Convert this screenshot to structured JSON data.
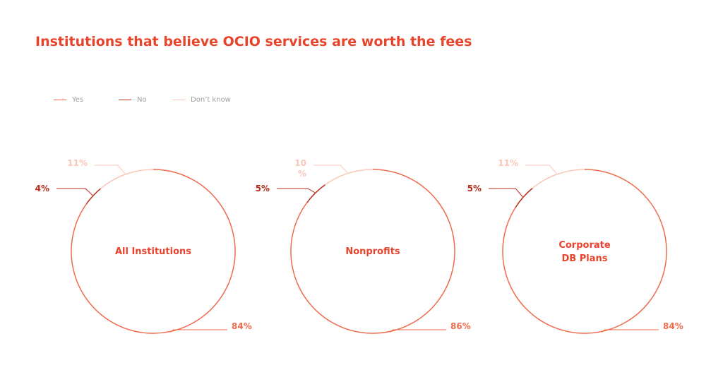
{
  "title": "Institutions that believe OCIO services are worth the fees",
  "colors": {
    "yes": "#f06a4c",
    "no": "#b82d1c",
    "dont_know": "#f9c7b8",
    "title": "#e8432b",
    "center_label": "#e8432b"
  },
  "legend": [
    {
      "label": "Yes",
      "color": "#f06a4c"
    },
    {
      "label": "No",
      "color": "#b82d1c"
    },
    {
      "label": "Don’t know",
      "color": "#f9c7b8"
    }
  ],
  "chart_data": [
    {
      "type": "pie",
      "style": "ring",
      "center_label": [
        "All Institutions"
      ],
      "slices": [
        {
          "category": "Yes",
          "value": 84,
          "label": "84%"
        },
        {
          "category": "No",
          "value": 4,
          "label": "4%"
        },
        {
          "category": "Don’t know",
          "value": 11,
          "label": "11%"
        }
      ]
    },
    {
      "type": "pie",
      "style": "ring",
      "center_label": [
        "Nonprofits"
      ],
      "slices": [
        {
          "category": "Yes",
          "value": 86,
          "label": "86%"
        },
        {
          "category": "No",
          "value": 5,
          "label": "5%"
        },
        {
          "category": "Don’t know",
          "value": 10,
          "label": "10\n%"
        }
      ]
    },
    {
      "type": "pie",
      "style": "ring",
      "center_label": [
        "Corporate",
        "DB Plans"
      ],
      "slices": [
        {
          "category": "Yes",
          "value": 84,
          "label": "84%"
        },
        {
          "category": "No",
          "value": 5,
          "label": "5%"
        },
        {
          "category": "Don’t know",
          "value": 11,
          "label": "11%"
        }
      ]
    }
  ]
}
